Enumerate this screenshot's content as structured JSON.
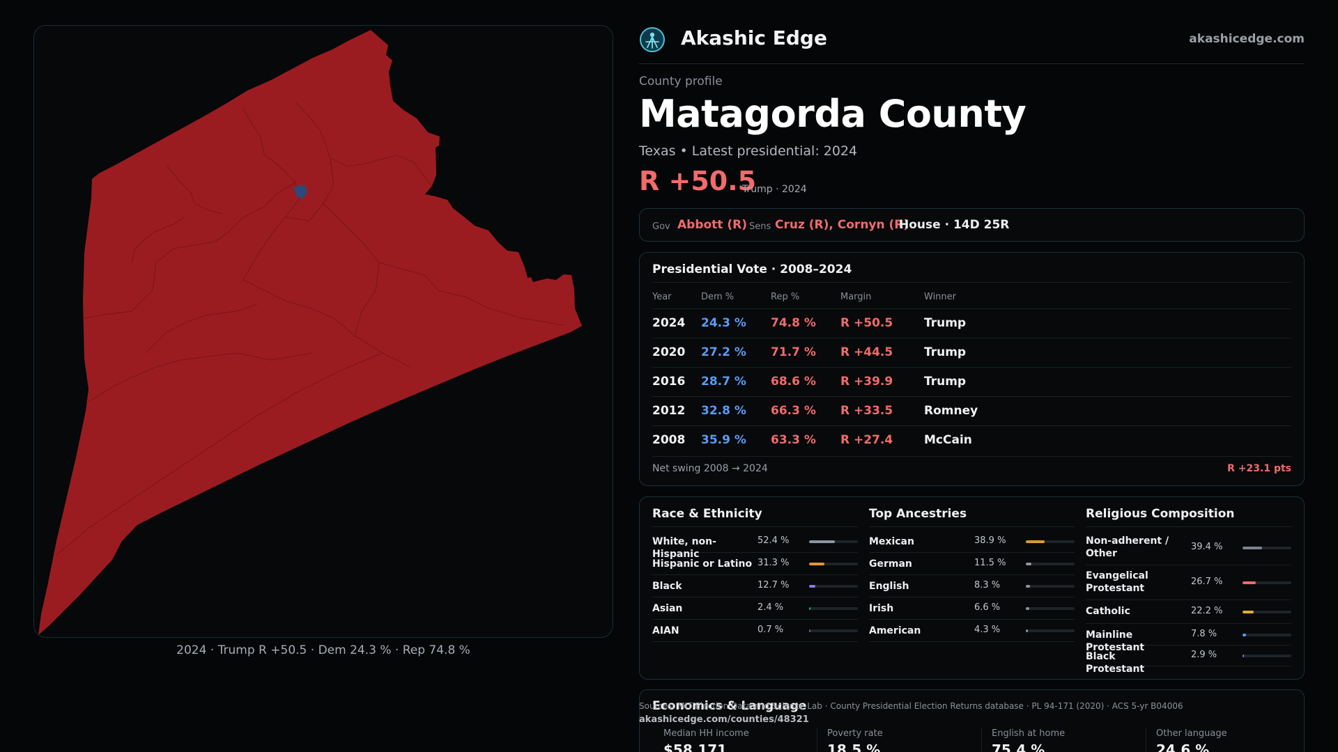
{
  "brand": {
    "name": "Akashic Edge",
    "url": "akashicedge.com",
    "logo_icon": "compass-logo-icon"
  },
  "county": {
    "eyebrow": "County profile",
    "name": "Matagorda County",
    "subtitle": "Texas • Latest presidential: 2024",
    "margin": "R +50.5",
    "margin_note": "Trump · 2024",
    "accent_rep": "#f26b6b",
    "accent_dem": "#5b9cf5"
  },
  "officials": {
    "gov_label": "Gov",
    "gov": "Abbott (R)",
    "sens_label": "Sens",
    "sens": "Cruz (R), Cornyn (R)",
    "house": "House · 14D 25R"
  },
  "presidential": {
    "title": "Presidential Vote · 2008–2024",
    "columns": [
      "Year",
      "Dem %",
      "Rep %",
      "Margin",
      "Winner"
    ],
    "rows": [
      {
        "year": "2024",
        "dem": "24.3 %",
        "rep": "74.8 %",
        "margin": "R +50.5",
        "winner": "Trump"
      },
      {
        "year": "2020",
        "dem": "27.2 %",
        "rep": "71.7 %",
        "margin": "R +44.5",
        "winner": "Trump"
      },
      {
        "year": "2016",
        "dem": "28.7 %",
        "rep": "68.6 %",
        "margin": "R +39.9",
        "winner": "Trump"
      },
      {
        "year": "2012",
        "dem": "32.8 %",
        "rep": "66.3 %",
        "margin": "R +33.5",
        "winner": "Romney"
      },
      {
        "year": "2008",
        "dem": "35.9 %",
        "rep": "63.3 %",
        "margin": "R +27.4",
        "winner": "McCain"
      }
    ],
    "swing_label": "Net swing 2008 → 2024",
    "swing_value": "R +23.1 pts"
  },
  "demographics": [
    {
      "title": "Race & Ethnicity",
      "rows": [
        {
          "name": "White, non-Hispanic",
          "pct": "52.4 %",
          "value": 52.4,
          "color": "#8d96a3"
        },
        {
          "name": "Hispanic or Latino",
          "pct": "31.3 %",
          "value": 31.3,
          "color": "#e09a2a"
        },
        {
          "name": "Black",
          "pct": "12.7 %",
          "value": 12.7,
          "color": "#8c78e8"
        },
        {
          "name": "Asian",
          "pct": "2.4 %",
          "value": 2.4,
          "color": "#2fb58a"
        },
        {
          "name": "AIAN",
          "pct": "0.7 %",
          "value": 0.7,
          "color": "#6b7280"
        }
      ]
    },
    {
      "title": "Top Ancestries",
      "rows": [
        {
          "name": "Mexican",
          "pct": "38.9 %",
          "value": 38.9,
          "color": "#e09a2a"
        },
        {
          "name": "German",
          "pct": "11.5 %",
          "value": 11.5,
          "color": "#8d96a3"
        },
        {
          "name": "English",
          "pct": "8.3 %",
          "value": 8.3,
          "color": "#8d96a3"
        },
        {
          "name": "Irish",
          "pct": "6.6 %",
          "value": 6.6,
          "color": "#8d96a3"
        },
        {
          "name": "American",
          "pct": "4.3 %",
          "value": 4.3,
          "color": "#8d96a3"
        }
      ]
    },
    {
      "title": "Religious Composition",
      "rows": [
        {
          "name": "Non-adherent / Other",
          "pct": "39.4 %",
          "value": 39.4,
          "color": "#7b8290"
        },
        {
          "name": "Evangelical Protestant",
          "pct": "26.7 %",
          "value": 26.7,
          "color": "#f26b6b"
        },
        {
          "name": "Catholic",
          "pct": "22.2 %",
          "value": 22.2,
          "color": "#e0b02a"
        },
        {
          "name": "Mainline Protestant",
          "pct": "7.8 %",
          "value": 7.8,
          "color": "#5b9cf5"
        },
        {
          "name": "Black Protestant",
          "pct": "2.9 %",
          "value": 2.9,
          "color": "#8c78e8"
        }
      ]
    }
  ],
  "economics": {
    "title": "Economics & Language",
    "stats": [
      {
        "label": "Median HH income",
        "value": "$58,171"
      },
      {
        "label": "Poverty rate",
        "value": "18.5 %"
      },
      {
        "label": "English at home",
        "value": "75.4 %"
      },
      {
        "label": "Other language",
        "value": "24.6 %"
      }
    ]
  },
  "source": {
    "text": "Sources: MIT Election Data and Science Lab · County Presidential Election Returns database · PL 94-171 (2020) · ACS 5-yr B04006",
    "url": "akashicedge.com/counties/48321"
  },
  "map": {
    "caption": "2024 · Trump R +50.5 · Dem 24.3 % · Rep 74.8 %",
    "fill_rep": "#9b1c20",
    "fill_dem": "#2a4a78",
    "border_color": "#173036"
  }
}
